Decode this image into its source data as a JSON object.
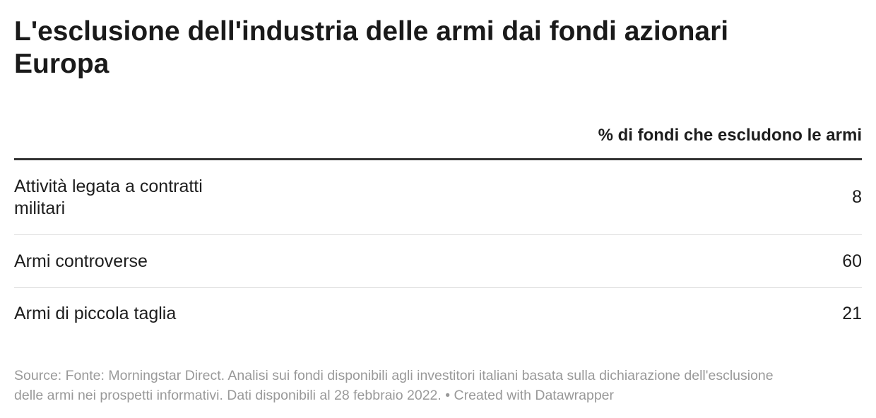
{
  "title": "L'esclusione dell'industria delle armi dai fondi azionari Europa",
  "table": {
    "value_header": "% di fondi che escludono le armi",
    "rows": [
      {
        "label": "Attività legata a contratti militari",
        "value": 8
      },
      {
        "label": "Armi controverse",
        "value": 60
      },
      {
        "label": "Armi di piccola taglia",
        "value": 21
      }
    ]
  },
  "footer": {
    "source": "Source: Fonte: Morningstar Direct. Analisi sui fondi disponibili agli investitori italiani basata sulla dichiarazione dell'esclusione delle armi nei prospetti informativi. Dati disponibili al 28 febbraio 2022.",
    "credit": "• Created with Datawrapper"
  }
}
